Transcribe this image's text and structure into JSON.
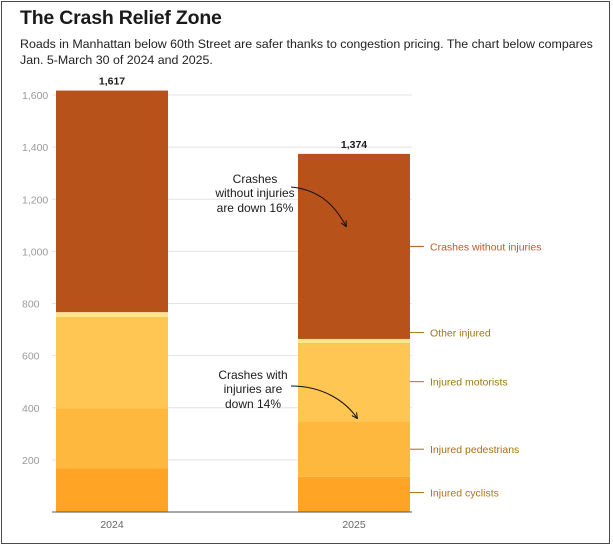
{
  "title": "The Crash Relief Zone",
  "subtitle": "Roads in Manhattan below 60th Street are safer thanks to congestion pricing. The chart below compares Jan. 5-March 30 of 2024 and 2025.",
  "chart_data": {
    "type": "bar",
    "stacked": true,
    "categories": [
      "2024",
      "2025"
    ],
    "series": [
      {
        "name": "Injured cyclists",
        "values": [
          167,
          135
        ],
        "color": "#FFA424"
      },
      {
        "name": "Injured pedestrians",
        "values": [
          230,
          212
        ],
        "color": "#FFB83E"
      },
      {
        "name": "Injured motorists",
        "values": [
          352,
          302
        ],
        "color": "#FFC654"
      },
      {
        "name": "Other injured",
        "values": [
          18,
          15
        ],
        "color": "#FFE48C"
      },
      {
        "name": "Crashes without injuries",
        "values": [
          850,
          710
        ],
        "color": "#B6521A"
      }
    ],
    "totals": [
      1617,
      1374
    ],
    "total_labels": [
      "1,617",
      "1,374"
    ],
    "ylim": [
      0,
      1600
    ],
    "yticks": [
      200,
      400,
      600,
      800,
      1000,
      1200,
      1400,
      1600
    ],
    "ytick_labels": [
      "200",
      "400",
      "600",
      "800",
      "1,000",
      "1,200",
      "1,400",
      "1,600"
    ],
    "grid": true,
    "xlabel": "",
    "ylabel": "",
    "legend_position": "right, inline labels",
    "annotations": [
      {
        "lines": [
          "Crashes",
          "without injuries",
          "are down 16%"
        ],
        "target_series": "Crashes without injuries"
      },
      {
        "lines": [
          "Crashes with",
          "injuries are",
          "down 14%"
        ],
        "target_series": "Injured motorists"
      }
    ]
  }
}
